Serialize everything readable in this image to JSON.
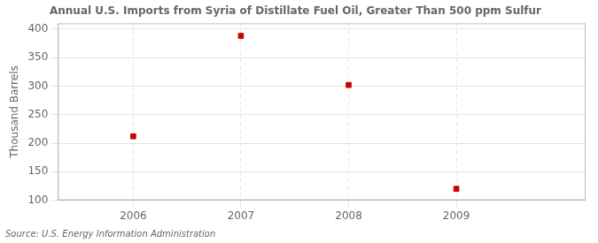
{
  "chart_data": {
    "type": "scatter",
    "title": "Annual U.S. Imports from Syria of Distillate Fuel Oil, Greater Than 500 ppm Sulfur",
    "ylabel": "Thousand Barrels",
    "source": "Source: U.S. Energy Information Administration",
    "x": [
      2006,
      2007,
      2008,
      2009
    ],
    "values": [
      212,
      388,
      302,
      120
    ],
    "color": "#CC0000",
    "marker": "square",
    "xlim": [
      2005.3,
      2010.2
    ],
    "xticks": [
      2006,
      2007,
      2008,
      2009
    ],
    "ylim": [
      100,
      410
    ],
    "yticks": [
      100,
      150,
      200,
      250,
      300,
      350,
      400
    ],
    "grid": true
  }
}
